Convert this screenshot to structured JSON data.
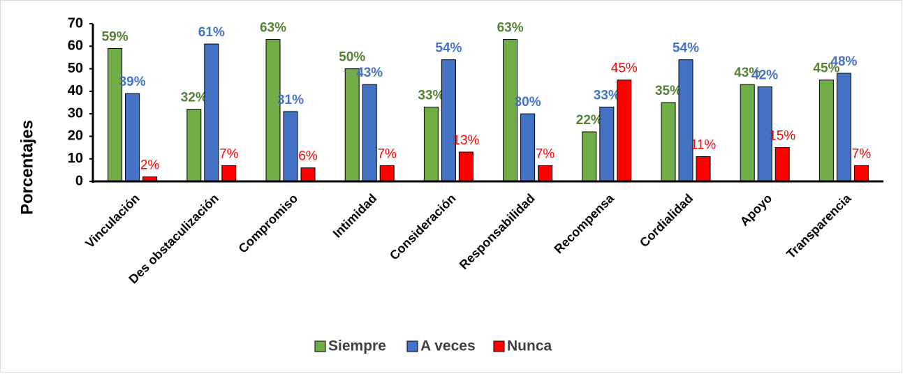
{
  "chart_data": {
    "type": "bar",
    "y_label": "Porcentajes",
    "categories": [
      "Vinculación",
      "Des obstaculización",
      "Compromiso",
      "Intimidad",
      "Consideración",
      "Responsabilidad",
      "Recompensa",
      "Cordialidad",
      "Apoyo",
      "Transparencia"
    ],
    "series": [
      {
        "name": "Siempre",
        "color": "#70ad47",
        "label_color": "#548235",
        "values": [
          59,
          32,
          63,
          50,
          33,
          63,
          22,
          35,
          43,
          45
        ],
        "value_labels": [
          "59%",
          "32%",
          "63%",
          "50%",
          "33%",
          "63%",
          "22%",
          "35%",
          "43%",
          "45%"
        ]
      },
      {
        "name": "A veces",
        "color": "#4472c4",
        "label_color": "#4472c4",
        "values": [
          39,
          61,
          31,
          43,
          54,
          30,
          33,
          54,
          42,
          48
        ],
        "value_labels": [
          "39%",
          "61%",
          "31%",
          "43%",
          "54%",
          "30%",
          "33%",
          "54%",
          "42%",
          "48%"
        ]
      },
      {
        "name": "Nunca",
        "color": "#ff0000",
        "label_color": "#ff0000",
        "values": [
          2,
          7,
          6,
          7,
          13,
          7,
          45,
          11,
          15,
          7
        ],
        "value_labels": [
          "2%",
          "7%",
          "6%",
          "7%",
          "13%",
          "7%",
          "45%",
          "11%",
          "15%",
          "7%"
        ]
      }
    ],
    "ylim": [
      0,
      70
    ],
    "yticks": [
      0,
      10,
      20,
      30,
      40,
      50,
      60,
      70
    ],
    "grid": false,
    "legend": "bottom"
  }
}
